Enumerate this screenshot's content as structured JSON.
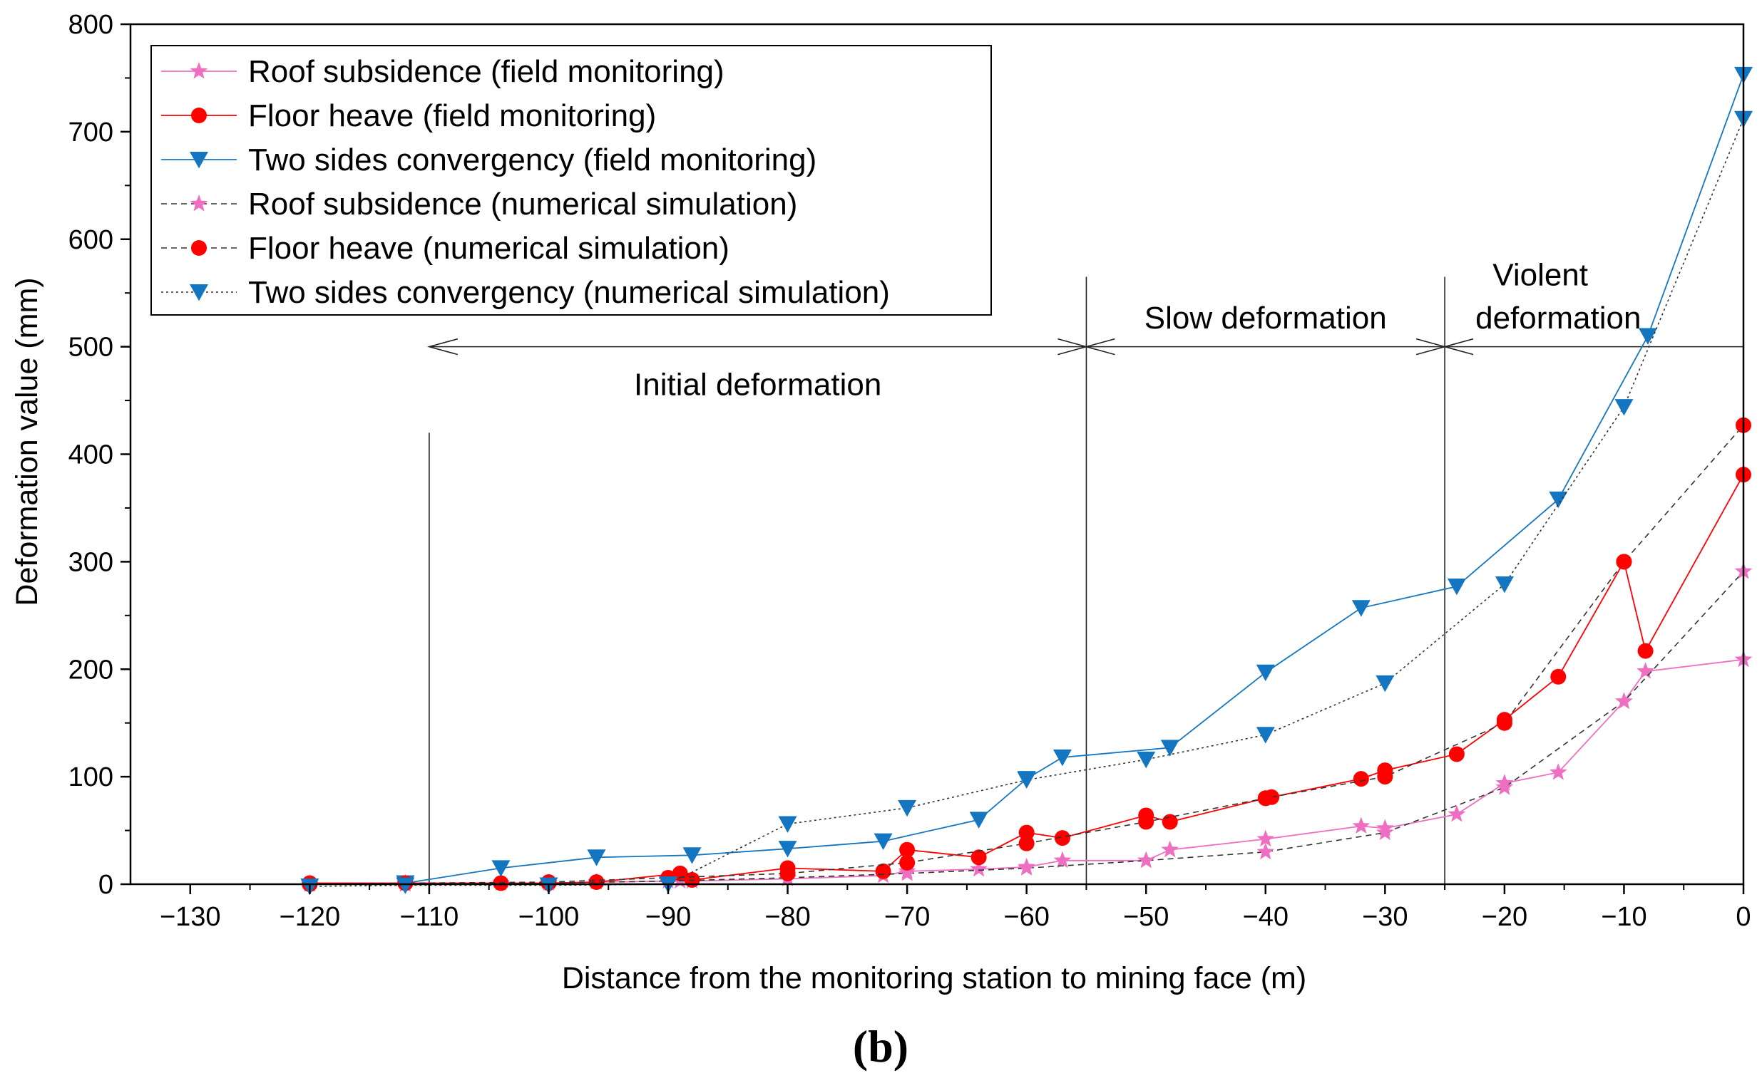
{
  "chart_data": {
    "type": "line",
    "title": "",
    "xlabel": "Distance from the monitoring station to mining face (m)",
    "ylabel": "Deformation value (mm)",
    "xlim": [
      -135,
      0
    ],
    "ylim": [
      0,
      800
    ],
    "xticks": [
      -130,
      -120,
      -110,
      -100,
      -90,
      -80,
      -70,
      -60,
      -50,
      -40,
      -30,
      -20,
      -10,
      0
    ],
    "yticks": [
      0,
      100,
      200,
      300,
      400,
      500,
      600,
      700,
      800
    ],
    "grid": false,
    "legend_position": "top-left",
    "panel_label": "(b)",
    "colors": {
      "pink": "#ee6fc1",
      "red": "#ff0000",
      "blue": "#1476c0",
      "dark": "#333333"
    },
    "series": [
      {
        "name": "Roof subsidence (field monitoring)",
        "style": "solid",
        "color": "#ee6fc1",
        "line_color": "#ee6fc1",
        "marker": "star",
        "x": [
          -120,
          -112,
          -104,
          -100,
          -96,
          -89,
          -88,
          -80,
          -72,
          -70,
          -64,
          -60,
          -57,
          -50,
          -48,
          -40,
          -32,
          -30,
          -24,
          -20,
          -15.5,
          -10,
          -8.2,
          0
        ],
        "y": [
          1,
          1,
          1,
          1,
          2,
          3,
          3,
          5,
          8,
          12,
          14,
          16,
          22,
          22,
          32,
          42,
          54,
          52,
          65,
          94,
          104,
          170,
          198,
          209
        ]
      },
      {
        "name": "Floor heave (field monitoring)",
        "style": "solid",
        "color": "#ff0000",
        "line_color": "#ff0000",
        "marker": "circle",
        "x": [
          -120,
          -112,
          -104,
          -100,
          -96,
          -89,
          -88,
          -80,
          -72,
          -70,
          -64,
          -60,
          -57,
          -50,
          -48,
          -40,
          -39.5,
          -32,
          -30,
          -24,
          -20,
          -15.5,
          -10,
          -8.2,
          0
        ],
        "y": [
          1,
          1,
          1,
          1,
          2,
          10,
          4,
          15,
          12,
          32,
          25,
          48,
          43,
          64,
          58,
          80,
          81,
          98,
          106,
          121,
          153,
          193,
          300,
          217,
          381
        ]
      },
      {
        "name": "Two sides convergency (field monitoring)",
        "style": "solid",
        "color": "#1476c0",
        "line_color": "#1476c0",
        "marker": "triangle-down",
        "x": [
          -112,
          -104,
          -96,
          -88,
          -80,
          -72,
          -64,
          -60,
          -57,
          -48,
          -40,
          -32,
          -24,
          -15.5,
          -8,
          0
        ],
        "y": [
          1,
          15,
          25,
          27,
          33,
          40,
          60,
          98,
          118,
          127,
          197,
          257,
          277,
          358,
          510,
          753
        ]
      },
      {
        "name": "Roof subsidence (numerical simulation)",
        "style": "dashed",
        "color": "#ee6fc1",
        "line_color": "#333333",
        "marker": "star",
        "x": [
          -120,
          -112,
          -100,
          -90,
          -80,
          -70,
          -60,
          -50,
          -40,
          -30,
          -20,
          -10,
          0
        ],
        "y": [
          0,
          0,
          1,
          3,
          6,
          10,
          15,
          22,
          30,
          48,
          90,
          170,
          291
        ]
      },
      {
        "name": "Floor heave (numerical simulation)",
        "style": "dashed",
        "color": "#ff0000",
        "line_color": "#333333",
        "marker": "circle",
        "x": [
          -120,
          -112,
          -100,
          -90,
          -80,
          -70,
          -60,
          -50,
          -40,
          -30,
          -20,
          -10,
          0
        ],
        "y": [
          0,
          1,
          2,
          6,
          10,
          20,
          38,
          58,
          80,
          100,
          150,
          300,
          427
        ]
      },
      {
        "name": "Two sides convergency (numerical simulation)",
        "style": "dotted",
        "color": "#1476c0",
        "line_color": "#333333",
        "marker": "triangle-down",
        "x": [
          -120,
          -112,
          -100,
          -90,
          -80,
          -70,
          -60,
          -50,
          -40,
          -30,
          -20,
          -10,
          0
        ],
        "y": [
          -2,
          -1,
          -1,
          0,
          56,
          71,
          97,
          116,
          139,
          187,
          279,
          444,
          712
        ]
      }
    ],
    "annotations": [
      {
        "text": "Initial deformation",
        "x": -82.5,
        "y": 465
      },
      {
        "text": "Slow deformation",
        "x": -40,
        "y": 527
      },
      {
        "text": "Violent",
        "x": -17,
        "y": 567
      },
      {
        "text": "deformation",
        "x": -15.5,
        "y": 527
      }
    ],
    "stage_boundaries_x": [
      -110,
      -55,
      -25,
      0
    ],
    "stage_arrow_y": 500
  }
}
